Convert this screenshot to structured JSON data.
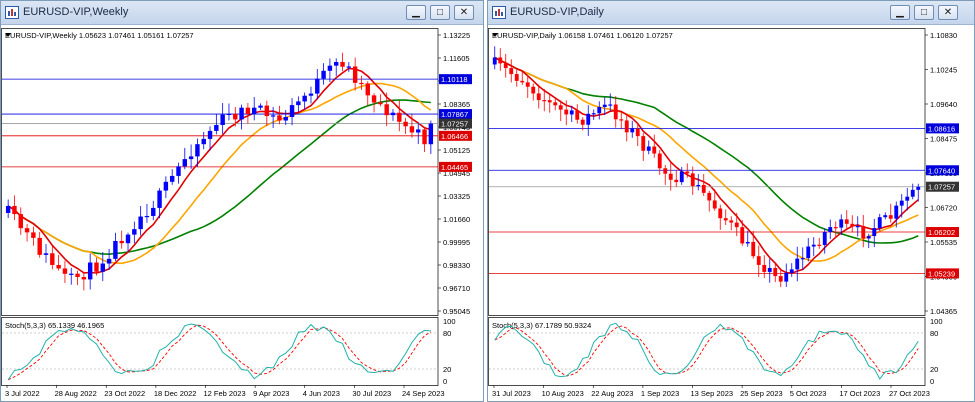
{
  "windows": [
    {
      "id": "left",
      "title": "EURUSD-VIP,Weekly",
      "header": "EURUSD-VIP,Weekly  1.05623 1.07461 1.05161 1.07257",
      "stoch_label": "Stoch(5,3,3) 65.1339 46.1965",
      "buttons": [
        "minimize",
        "maximize",
        "close"
      ],
      "price_scale": [
        "1.13225",
        "1.11605",
        "1.09985",
        "1.08365",
        "1.06745",
        "1.05125",
        "1.04945",
        "1.03325",
        "1.01660",
        "0.99995",
        "0.98330",
        "0.96710",
        "0.95045"
      ],
      "price_levels": {
        "top": 1.1335,
        "bottom": 0.9492
      },
      "hlines": [
        {
          "price": 1.10118,
          "label": "1.10118",
          "color": "#0000dd",
          "tag_color": "#0000dd"
        },
        {
          "price": 1.07867,
          "label": "1.07867",
          "color": "#0000dd",
          "tag_color": "#0000dd"
        },
        {
          "price": 1.07257,
          "label": "1.07257",
          "color": "#999999",
          "tag_color": "#333333"
        },
        {
          "price": 1.06466,
          "label": "1.06466",
          "color": "#dd0000",
          "tag_color": "#dd0000"
        },
        {
          "price": 1.04465,
          "label": "1.04465",
          "color": "#dd0000",
          "tag_color": "#dd0000"
        }
      ],
      "stoch_scale": [
        "100",
        "80",
        "20",
        "0"
      ],
      "time_labels": [
        "3 Jul 2022",
        "28 Aug 2022",
        "23 Oct 2022",
        "18 Dec 2022",
        "12 Feb 2023",
        "9 Apr 2023",
        "4 Jun 2023",
        "30 Jul 2023",
        "24 Sep 2023"
      ]
    },
    {
      "id": "right",
      "title": "EURUSD-VIP,Daily",
      "header": "EURUSD-VIP,Daily  1.06158 1.07461 1.06120 1.07257",
      "stoch_label": "Stoch(5,3,3) 67.1789 50.9324",
      "buttons": [
        "minimize",
        "maximize",
        "close"
      ],
      "price_scale": [
        "1.10830",
        "1.10245",
        "1.09640",
        "1.08475",
        "1.07890",
        "1.06720",
        "1.05535",
        "1.04950",
        "1.04365"
      ],
      "price_levels": {
        "top": 1.1093,
        "bottom": 1.0427
      },
      "hlines": [
        {
          "price": 1.08616,
          "label": "1.08616",
          "color": "#0000dd",
          "tag_color": "#0000dd"
        },
        {
          "price": 1.0764,
          "label": "1.07640",
          "color": "#0000dd",
          "tag_color": "#0000dd"
        },
        {
          "price": 1.07257,
          "label": "1.07257",
          "color": "#999999",
          "tag_color": "#333333"
        },
        {
          "price": 1.06202,
          "label": "1.06202",
          "color": "#dd0000",
          "tag_color": "#dd0000"
        },
        {
          "price": 1.05239,
          "label": "1.05239",
          "color": "#dd0000",
          "tag_color": "#dd0000"
        }
      ],
      "stoch_scale": [
        "100",
        "80",
        "20",
        "0"
      ],
      "time_labels": [
        "31 Jul 2023",
        "10 Aug 2023",
        "22 Aug 2023",
        "1 Sep 2023",
        "13 Sep 2023",
        "25 Sep 2023",
        "5 Oct 2023",
        "17 Oct 2023",
        "27 Oct 2023"
      ]
    }
  ],
  "colors": {
    "bull": "#0000ff",
    "bear": "#ff0000",
    "ma_fast": "#e00000",
    "ma_mid": "#ffa500",
    "ma_slow": "#008000",
    "stoch_main": "#20b2aa",
    "stoch_signal": "#ff0000"
  }
}
